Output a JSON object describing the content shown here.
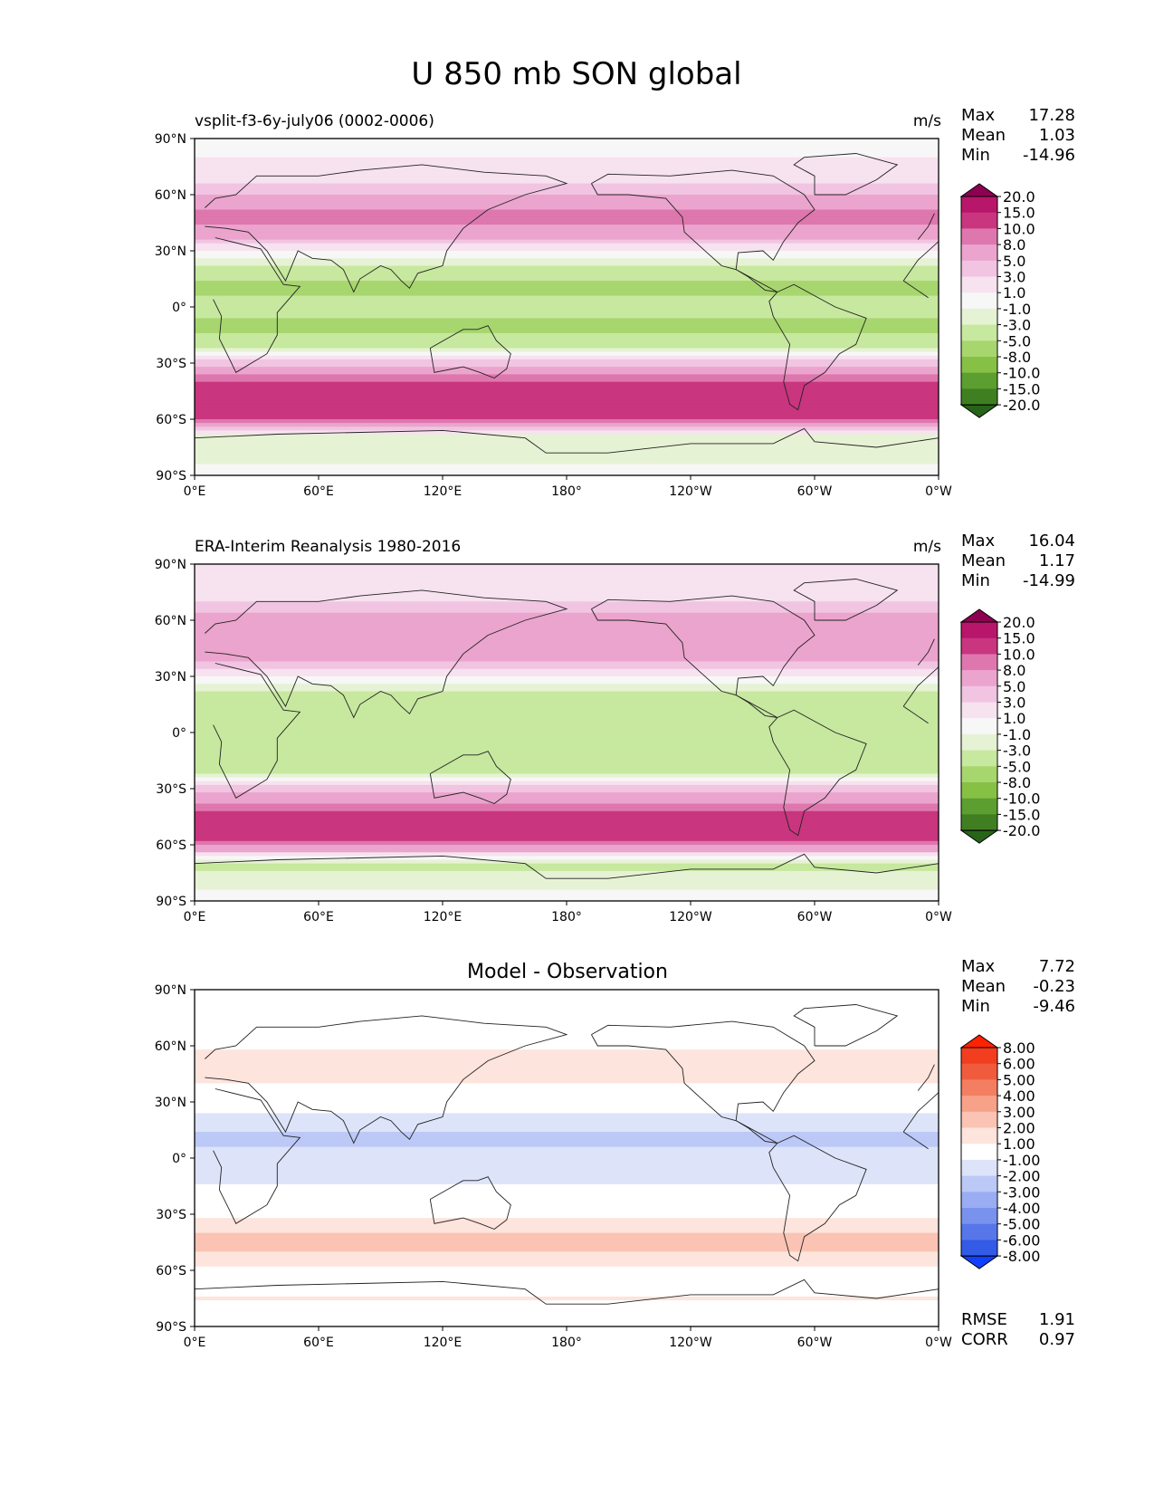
{
  "title": "U 850 mb SON global",
  "colors": {
    "diverging_pink_green": [
      "#8e0152",
      "#b8166a",
      "#c9357f",
      "#de77ae",
      "#eba4cd",
      "#f1c4e2",
      "#f7e2ef",
      "#f7f7f7",
      "#e6f2d4",
      "#c7e89f",
      "#a7d66e",
      "#86c045",
      "#5c9e2f",
      "#3f7f22",
      "#276419"
    ],
    "diverging_blue_red": [
      "#ff2200",
      "#f23e1f",
      "#f05b3e",
      "#f47e61",
      "#f7a189",
      "#fac3b3",
      "#fde4dc",
      "#ffffff",
      "#dde4fa",
      "#bcc8f6",
      "#9aadf2",
      "#7892ee",
      "#5676ea",
      "#345be6",
      "#1240ff"
    ],
    "map_background": "#f7f7f7",
    "coastline": "#222222"
  },
  "chart_data": [
    {
      "type": "heatmap",
      "title": "vsplit-f3-6y-july06 (0002-0006)",
      "units": "m/s",
      "stats": {
        "max_label": "Max",
        "max": "17.28",
        "mean_label": "Mean",
        "mean": "1.03",
        "min_label": "Min",
        "min": "-14.96"
      },
      "x_ticks": [
        "0°E",
        "60°E",
        "120°E",
        "180°",
        "120°W",
        "60°W",
        "0°W"
      ],
      "y_ticks": [
        "90°N",
        "60°N",
        "30°N",
        "0°",
        "30°S",
        "60°S",
        "90°S"
      ],
      "colorbar_labels": [
        "20.0",
        "15.0",
        "10.0",
        "8.0",
        "5.0",
        "3.0",
        "1.0",
        "-1.0",
        "-3.0",
        "-5.0",
        "-8.0",
        "-10.0",
        "-15.0",
        "-20.0"
      ],
      "zonal_bands": [
        {
          "lat": 90,
          "u": 0
        },
        {
          "lat": 70,
          "u": 2
        },
        {
          "lat": 60,
          "u": 5
        },
        {
          "lat": 50,
          "u": 9
        },
        {
          "lat": 40,
          "u": 7
        },
        {
          "lat": 30,
          "u": 1
        },
        {
          "lat": 20,
          "u": -4
        },
        {
          "lat": 10,
          "u": -6
        },
        {
          "lat": 0,
          "u": -4
        },
        {
          "lat": -10,
          "u": -6
        },
        {
          "lat": -20,
          "u": -4
        },
        {
          "lat": -30,
          "u": 4
        },
        {
          "lat": -45,
          "u": 13
        },
        {
          "lat": -55,
          "u": 14
        },
        {
          "lat": -62,
          "u": 8
        },
        {
          "lat": -70,
          "u": -3
        },
        {
          "lat": -90,
          "u": 0
        }
      ]
    },
    {
      "type": "heatmap",
      "title": "ERA-Interim Reanalysis 1980-2016",
      "units": "m/s",
      "stats": {
        "max_label": "Max",
        "max": "16.04",
        "mean_label": "Mean",
        "mean": "1.17",
        "min_label": "Min",
        "min": "-14.99"
      },
      "x_ticks": [
        "0°E",
        "60°E",
        "120°E",
        "180°",
        "120°W",
        "60°W",
        "0°W"
      ],
      "y_ticks": [
        "90°N",
        "60°N",
        "30°N",
        "0°",
        "30°S",
        "60°S",
        "90°S"
      ],
      "colorbar_labels": [
        "20.0",
        "15.0",
        "10.0",
        "8.0",
        "5.0",
        "3.0",
        "1.0",
        "-1.0",
        "-3.0",
        "-5.0",
        "-8.0",
        "-10.0",
        "-15.0",
        "-20.0"
      ],
      "zonal_bands": [
        {
          "lat": 90,
          "u": 1
        },
        {
          "lat": 70,
          "u": 3
        },
        {
          "lat": 60,
          "u": 6
        },
        {
          "lat": 50,
          "u": 8
        },
        {
          "lat": 40,
          "u": 6
        },
        {
          "lat": 30,
          "u": 1
        },
        {
          "lat": 20,
          "u": -4
        },
        {
          "lat": 10,
          "u": -5
        },
        {
          "lat": 0,
          "u": -3
        },
        {
          "lat": -10,
          "u": -5
        },
        {
          "lat": -20,
          "u": -4
        },
        {
          "lat": -30,
          "u": 4
        },
        {
          "lat": -45,
          "u": 12
        },
        {
          "lat": -55,
          "u": 13
        },
        {
          "lat": -62,
          "u": 7
        },
        {
          "lat": -70,
          "u": -4
        },
        {
          "lat": -90,
          "u": 0
        }
      ]
    },
    {
      "type": "heatmap",
      "title": "Model - Observation",
      "units": "",
      "stats": {
        "max_label": "Max",
        "max": "7.72",
        "mean_label": "Mean",
        "mean": "-0.23",
        "min_label": "Min",
        "min": "-9.46"
      },
      "metrics": {
        "rmse_label": "RMSE",
        "rmse": "1.91",
        "corr_label": "CORR",
        "corr": "0.97"
      },
      "x_ticks": [
        "0°E",
        "60°E",
        "120°E",
        "180°",
        "120°W",
        "60°W",
        "0°W"
      ],
      "y_ticks": [
        "90°N",
        "60°N",
        "30°N",
        "0°",
        "30°S",
        "60°S",
        "90°S"
      ],
      "colorbar_labels": [
        "8.00",
        "6.00",
        "5.00",
        "4.00",
        "3.00",
        "2.00",
        "1.00",
        "-1.00",
        "-2.00",
        "-3.00",
        "-4.00",
        "-5.00",
        "-6.00",
        "-8.00"
      ],
      "zonal_bands": [
        {
          "lat": 90,
          "u": 0
        },
        {
          "lat": 70,
          "u": -0.5
        },
        {
          "lat": 55,
          "u": 1.5
        },
        {
          "lat": 45,
          "u": 1.5
        },
        {
          "lat": 30,
          "u": 0
        },
        {
          "lat": 20,
          "u": -1.5
        },
        {
          "lat": 10,
          "u": -2.5
        },
        {
          "lat": 0,
          "u": -1
        },
        {
          "lat": -10,
          "u": -1.5
        },
        {
          "lat": -20,
          "u": -0.5
        },
        {
          "lat": -35,
          "u": 1.5
        },
        {
          "lat": -45,
          "u": 2.5
        },
        {
          "lat": -55,
          "u": 1.5
        },
        {
          "lat": -65,
          "u": 0
        },
        {
          "lat": -75,
          "u": 1
        },
        {
          "lat": -90,
          "u": 0
        }
      ]
    }
  ]
}
